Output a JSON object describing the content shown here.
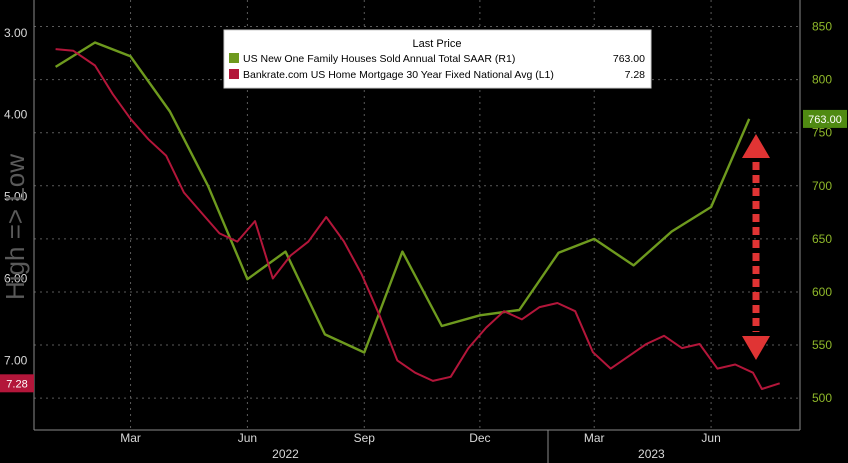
{
  "chart_data": {
    "type": "line",
    "title": "",
    "x_tick_labels": [
      "Mar",
      "Jun",
      "Sep",
      "Dec",
      "Mar",
      "Jun"
    ],
    "year_labels": [
      "2022",
      "2023"
    ],
    "left_axis": {
      "ticks": [
        "3.00",
        "4.00",
        "5.00",
        "6.00",
        "7.00"
      ],
      "range": [
        2.6,
        7.85
      ],
      "inverted": true,
      "label": "High => Low"
    },
    "right_axis": {
      "ticks": [
        "500",
        "550",
        "600",
        "650",
        "700",
        "750",
        "800",
        "850"
      ],
      "range": [
        470,
        875
      ]
    },
    "grid": true,
    "legend": {
      "placement": "top-center",
      "header": "Last Price",
      "entries": [
        {
          "name": "US New One Family Houses Sold Annual Total SAAR  (R1)",
          "value": "763.00",
          "color": "#6e9a1e"
        },
        {
          "name": "Bankrate.com US Home Mortgage 30 Year Fixed National Avg  (L1)",
          "value": "7.28",
          "color": "#b3163a"
        }
      ]
    },
    "last_value_badges": {
      "left": {
        "text": "7.28",
        "value": 7.28,
        "color": "#b3163a"
      },
      "right": {
        "text": "763.00",
        "value": 763,
        "color": "#4f8a12"
      }
    },
    "series": [
      {
        "name": "US New One Family Houses Sold Annual Total SAAR  (R1)",
        "axis": "right",
        "color": "#6e9a1e",
        "points": [
          [
            "2022-01-01",
            812
          ],
          [
            "2022-02-01",
            835
          ],
          [
            "2022-03-01",
            822
          ],
          [
            "2022-04-01",
            770
          ],
          [
            "2022-05-01",
            700
          ],
          [
            "2022-06-01",
            612
          ],
          [
            "2022-07-01",
            638
          ],
          [
            "2022-08-01",
            560
          ],
          [
            "2022-09-01",
            543
          ],
          [
            "2022-10-01",
            638
          ],
          [
            "2022-11-01",
            568
          ],
          [
            "2022-12-01",
            578
          ],
          [
            "2023-01-01",
            583
          ],
          [
            "2023-02-01",
            637
          ],
          [
            "2023-03-01",
            650
          ],
          [
            "2023-04-01",
            625
          ],
          [
            "2023-05-01",
            657
          ],
          [
            "2023-06-01",
            680
          ],
          [
            "2023-07-01",
            763
          ]
        ]
      },
      {
        "name": "Bankrate.com US Home Mortgage 30 Year Fixed National Avg  (L1)",
        "axis": "left",
        "color": "#b3163a",
        "points": [
          [
            "2022-01-01",
            3.2
          ],
          [
            "2022-01-15",
            3.22
          ],
          [
            "2022-02-01",
            3.4
          ],
          [
            "2022-02-15",
            3.75
          ],
          [
            "2022-03-01",
            4.05
          ],
          [
            "2022-03-15",
            4.3
          ],
          [
            "2022-03-29",
            4.5
          ],
          [
            "2022-04-12",
            4.95
          ],
          [
            "2022-04-26",
            5.2
          ],
          [
            "2022-05-10",
            5.45
          ],
          [
            "2022-05-24",
            5.55
          ],
          [
            "2022-06-07",
            5.3
          ],
          [
            "2022-06-21",
            6.0
          ],
          [
            "2022-07-05",
            5.72
          ],
          [
            "2022-07-19",
            5.55
          ],
          [
            "2022-08-02",
            5.25
          ],
          [
            "2022-08-16",
            5.55
          ],
          [
            "2022-08-30",
            5.95
          ],
          [
            "2022-09-13",
            6.45
          ],
          [
            "2022-09-27",
            7.0
          ],
          [
            "2022-10-11",
            7.15
          ],
          [
            "2022-10-25",
            7.25
          ],
          [
            "2022-11-08",
            7.2
          ],
          [
            "2022-11-22",
            6.85
          ],
          [
            "2022-12-06",
            6.6
          ],
          [
            "2022-12-20",
            6.4
          ],
          [
            "2023-01-03",
            6.5
          ],
          [
            "2023-01-17",
            6.35
          ],
          [
            "2023-01-31",
            6.3
          ],
          [
            "2023-02-14",
            6.4
          ],
          [
            "2023-02-28",
            6.9
          ],
          [
            "2023-03-14",
            7.1
          ],
          [
            "2023-03-28",
            6.95
          ],
          [
            "2023-04-11",
            6.8
          ],
          [
            "2023-04-25",
            6.7
          ],
          [
            "2023-05-09",
            6.85
          ],
          [
            "2023-05-23",
            6.8
          ],
          [
            "2023-06-06",
            7.1
          ],
          [
            "2023-06-20",
            7.05
          ],
          [
            "2023-07-04",
            7.15
          ],
          [
            "2023-07-11",
            7.35
          ],
          [
            "2023-07-25",
            7.28
          ]
        ]
      }
    ]
  }
}
